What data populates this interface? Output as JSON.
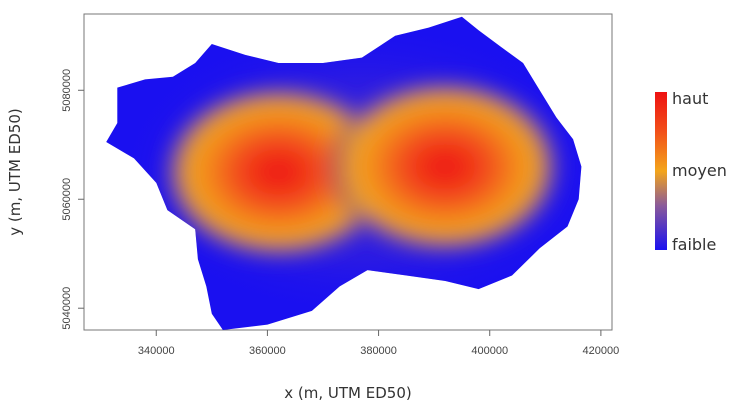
{
  "chart_data": {
    "type": "heatmap",
    "title": "",
    "xlabel": "x (m, UTM ED50)",
    "ylabel": "y (m, UTM ED50)",
    "xlim": [
      327000,
      422000
    ],
    "ylim": [
      5036000,
      5094000
    ],
    "x_ticks": [
      "340000",
      "360000",
      "380000",
      "400000",
      "420000"
    ],
    "y_ticks": [
      "5040000",
      "5060000",
      "5080000"
    ],
    "grid": false,
    "legend": {
      "placement": "right",
      "labels": [
        "haut",
        "moyen",
        "faible"
      ],
      "colors": {
        "haut": "#ee1111",
        "moyen": "#f3a51b",
        "faible": "#1a10f0"
      }
    },
    "intensity_peaks": [
      {
        "x": 362000,
        "y": 5065000,
        "level": "haut"
      },
      {
        "x": 392000,
        "y": 5066000,
        "level": "haut"
      }
    ],
    "region_outline": [
      [
        352000,
        5036000
      ],
      [
        360000,
        5037000
      ],
      [
        368000,
        5039500
      ],
      [
        373000,
        5044000
      ],
      [
        378000,
        5047000
      ],
      [
        385000,
        5046000
      ],
      [
        392000,
        5045000
      ],
      [
        398000,
        5043500
      ],
      [
        404000,
        5046000
      ],
      [
        409000,
        5051000
      ],
      [
        414000,
        5055000
      ],
      [
        416000,
        5060000
      ],
      [
        416500,
        5066000
      ],
      [
        415000,
        5071000
      ],
      [
        412000,
        5075000
      ],
      [
        409000,
        5080000
      ],
      [
        406000,
        5085000
      ],
      [
        402000,
        5088000
      ],
      [
        398000,
        5091000
      ],
      [
        395000,
        5093500
      ],
      [
        389000,
        5091500
      ],
      [
        383000,
        5090000
      ],
      [
        377000,
        5086000
      ],
      [
        370000,
        5085000
      ],
      [
        362000,
        5085000
      ],
      [
        356000,
        5086500
      ],
      [
        350000,
        5088500
      ],
      [
        347000,
        5085000
      ],
      [
        343000,
        5082500
      ],
      [
        338000,
        5082000
      ],
      [
        333000,
        5080500
      ],
      [
        333000,
        5074000
      ],
      [
        331000,
        5070500
      ],
      [
        336000,
        5067500
      ],
      [
        340000,
        5063000
      ],
      [
        342000,
        5058000
      ],
      [
        347000,
        5054500
      ],
      [
        347500,
        5049000
      ],
      [
        349000,
        5044000
      ],
      [
        350000,
        5039000
      ]
    ]
  }
}
